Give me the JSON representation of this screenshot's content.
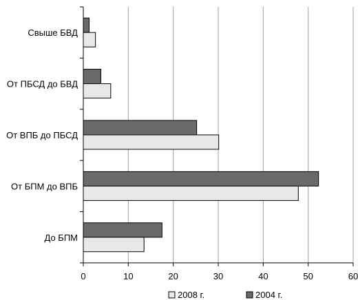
{
  "chart_data": {
    "type": "bar",
    "orientation": "horizontal",
    "categories": [
      "Свыше БВД",
      "От  ПБСД до БВД",
      "От ВПБ до ПБСД",
      "От БПМ до ВПБ",
      "До БПМ"
    ],
    "series": [
      {
        "name": "2004 г.",
        "color": "#6a6a6a",
        "values": [
          1.3,
          3.9,
          25.2,
          52.3,
          17.5
        ]
      },
      {
        "name": "2008 г.",
        "color": "#e8e8e8",
        "values": [
          2.7,
          6.1,
          30.1,
          47.8,
          13.5
        ]
      }
    ],
    "xlim": [
      0,
      60
    ],
    "xticks": [
      "0",
      "10",
      "20",
      "30",
      "40",
      "50",
      "60"
    ],
    "grid": true,
    "legend_position": "bottom",
    "legend_order": [
      "2008 г.",
      "2004 г."
    ]
  }
}
